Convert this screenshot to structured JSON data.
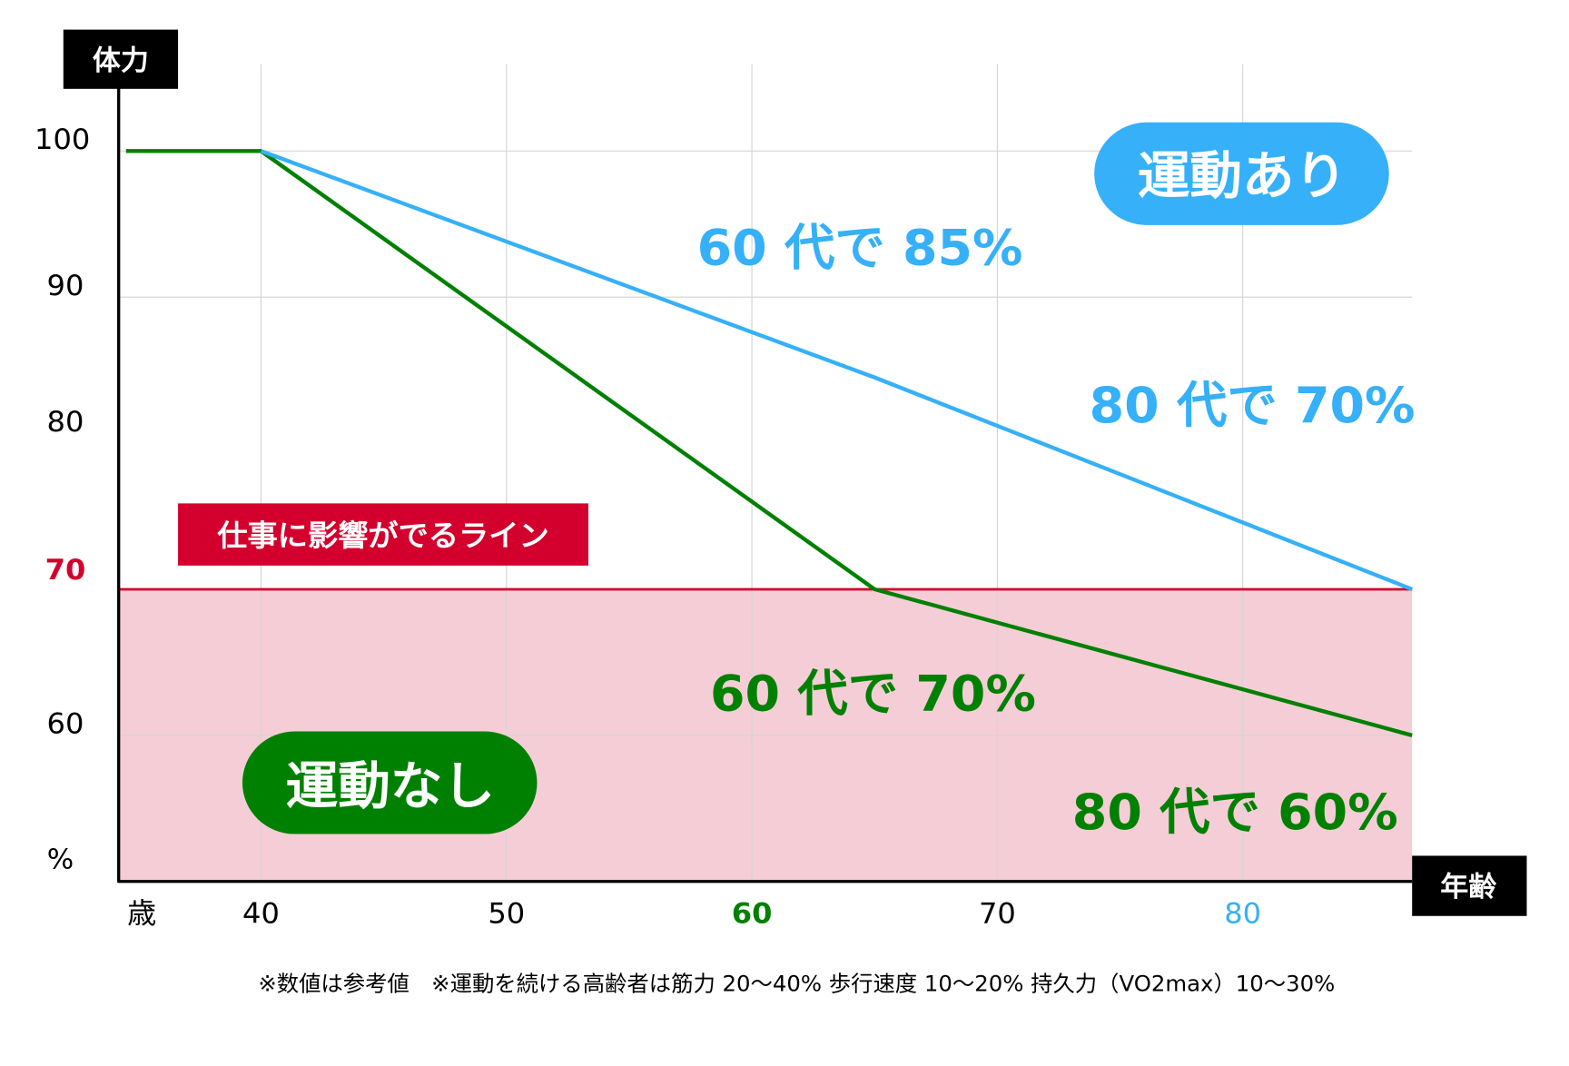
{
  "chart_data": {
    "type": "line",
    "ylabel": "体力",
    "xlabel": "年齢",
    "y_unit": "%",
    "x_unit": "歳",
    "xlim": [
      34.2,
      86.9
    ],
    "ylim": [
      50.4,
      103.5
    ],
    "x_ticks": [
      {
        "label": "40",
        "value": 40,
        "color": "#000000",
        "bold": false
      },
      {
        "label": "50",
        "value": 50,
        "color": "#000000",
        "bold": false
      },
      {
        "label": "60",
        "value": 60,
        "color": "#008000",
        "bold": true
      },
      {
        "label": "70",
        "value": 70,
        "color": "#000000",
        "bold": false
      },
      {
        "label": "80",
        "value": 80,
        "color": "#36b0f8",
        "bold": false
      }
    ],
    "y_ticks": [
      {
        "label": "100",
        "value": 100,
        "color": "#000000",
        "bold": false
      },
      {
        "label": "90",
        "value": 90,
        "color": "#000000",
        "bold": false
      },
      {
        "label": "80",
        "value": 80,
        "color": "#000000",
        "bold": false
      },
      {
        "label": "70",
        "value": 70,
        "color": "#d3002d",
        "bold": true
      },
      {
        "label": "60",
        "value": 60,
        "color": "#000000",
        "bold": false
      }
    ],
    "grid": true,
    "series": [
      {
        "name": "運動なし",
        "color": "#008000",
        "points": [
          [
            34.5,
            100
          ],
          [
            40,
            100
          ],
          [
            65,
            70
          ],
          [
            86.9,
            60
          ]
        ]
      },
      {
        "name": "運動あり",
        "color": "#36b0f8",
        "points": [
          [
            40,
            100
          ],
          [
            65,
            84.5
          ],
          [
            86.9,
            70
          ]
        ]
      }
    ],
    "threshold": {
      "value": 70,
      "label": "仕事に影響がでるライン",
      "color": "#d3002d",
      "fill": "#f5cdd6"
    },
    "annotations": [
      {
        "text": "60 代で 85%",
        "color": "#36b0f8"
      },
      {
        "text": "80 代で 70%",
        "color": "#36b0f8"
      },
      {
        "text": "60 代で 70%",
        "color": "#008000"
      },
      {
        "text": "80 代で 60%",
        "color": "#008000"
      }
    ]
  },
  "footnote": "※数値は参考値　※運動を続ける高齢者は筋力 20〜40% 歩行速度 10〜20% 持久力（VO2max）10〜30%"
}
